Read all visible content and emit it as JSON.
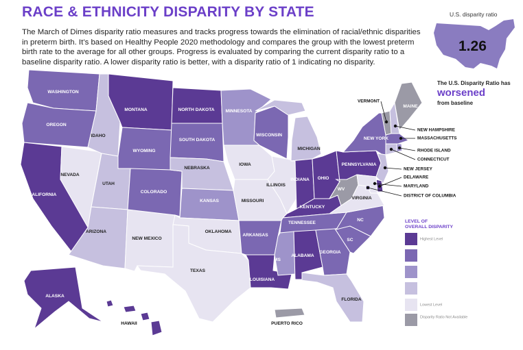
{
  "header": {
    "title": "RACE & ETHNICITY DISPARITY BY STATE",
    "description": "The March of Dimes disparity ratio measures and tracks progress towards the elimination of racial/ethnic disparities in preterm birth. It’s based on Healthy People 2020 methodology and compares the group with the lowest preterm birth rate to the average for all other groups. Progress is evaluated by comparing the current disparity ratio to a baseline disparity ratio. A lower disparity ratio is better, with a disparity ratio of 1 indicating no disparity."
  },
  "us_summary": {
    "caption": "U.S. disparity ratio",
    "value": 1.26,
    "trend_prefix": "The U.S. Disparity Ratio has",
    "trend": "worsened",
    "trend_suffix": "from baseline"
  },
  "legend": {
    "title": [
      "LEVEL OF",
      "OVERALL DISPARITY"
    ],
    "items": [
      {
        "color": "#5b3a94",
        "label": "Highest Level"
      },
      {
        "color": "#7b68b2"
      },
      {
        "color": "#9e93ca"
      },
      {
        "color": "#c6c0df"
      },
      {
        "color": "#e7e4f1",
        "label": "Lowest Level"
      },
      {
        "color": "#9b9aa6",
        "label": "Disparity Ratio Not Available"
      }
    ]
  },
  "states": [
    {
      "label": "WASHINGTON",
      "color": "#7b68b2"
    },
    {
      "label": "OREGON",
      "color": "#7b68b2"
    },
    {
      "label": "CALIFORNIA",
      "color": "#5b3a94"
    },
    {
      "label": "NEVADA",
      "color": "#e7e4f1"
    },
    {
      "label": "IDAHO",
      "color": "#c6c0df"
    },
    {
      "label": "MONTANA",
      "color": "#5b3a94"
    },
    {
      "label": "WYOMING",
      "color": "#7b68b2"
    },
    {
      "label": "UTAH",
      "color": "#c6c0df"
    },
    {
      "label": "ARIZONA",
      "color": "#c6c0df"
    },
    {
      "label": "NEW MEXICO",
      "color": "#e7e4f1"
    },
    {
      "label": "COLORADO",
      "color": "#7b68b2"
    },
    {
      "label": "NORTH DAKOTA",
      "color": "#5b3a94"
    },
    {
      "label": "SOUTH DAKOTA",
      "color": "#7b68b2"
    },
    {
      "label": "NEBRASKA",
      "color": "#c6c0df"
    },
    {
      "label": "KANSAS",
      "color": "#9e93ca"
    },
    {
      "label": "OKLAHOMA",
      "color": "#e7e4f1"
    },
    {
      "label": "TEXAS",
      "color": "#e7e4f1"
    },
    {
      "label": "MINNESOTA",
      "color": "#9e93ca"
    },
    {
      "label": "IOWA",
      "color": "#e7e4f1"
    },
    {
      "label": "MISSOURI",
      "color": "#e7e4f1"
    },
    {
      "label": "ARKANSAS",
      "color": "#7b68b2"
    },
    {
      "label": "LOUISIANA",
      "color": "#5b3a94"
    },
    {
      "label": "WISCONSIN",
      "color": "#7b68b2"
    },
    {
      "label": "ILLINOIS",
      "color": "#e7e4f1"
    },
    {
      "label": "MICHIGAN",
      "color": "#c6c0df"
    },
    {
      "label": "INDIANA",
      "color": "#5b3a94"
    },
    {
      "label": "OHIO",
      "color": "#5b3a94"
    },
    {
      "label": "KENTUCKY",
      "color": "#5b3a94"
    },
    {
      "label": "TENNESSEE",
      "color": "#7b68b2"
    },
    {
      "label": "MS",
      "color": "#9e93ca"
    },
    {
      "label": "ALABAMA",
      "color": "#5b3a94"
    },
    {
      "label": "GEORGIA",
      "color": "#7b68b2"
    },
    {
      "label": "FLORIDA",
      "color": "#c6c0df"
    },
    {
      "label": "SC",
      "color": "#7b68b2"
    },
    {
      "label": "NC",
      "color": "#7b68b2"
    },
    {
      "label": "VIRGINIA",
      "color": "#e7e4f1"
    },
    {
      "label": "WV",
      "color": "#9b9aa6"
    },
    {
      "label": "PENNSYLVANIA",
      "color": "#5b3a94"
    },
    {
      "label": "NEW YORK",
      "color": "#7b68b2"
    },
    {
      "label": "VERMONT",
      "color": "#9b9aa6"
    },
    {
      "label": "NEW HAMPSHIRE",
      "color": "#c6c0df"
    },
    {
      "label": "MAINE",
      "color": "#9b9aa6"
    },
    {
      "label": "MASSACHUSETTS",
      "color": "#7b68b2"
    },
    {
      "label": "CONNECTICUT",
      "color": "#c6c0df"
    },
    {
      "label": "RHODE ISLAND",
      "color": "#9e93ca"
    },
    {
      "label": "NEW JERSEY",
      "color": "#c6c0df"
    },
    {
      "label": "DELAWARE",
      "color": "#5b3a94"
    },
    {
      "label": "MARYLAND",
      "color": "#e7e4f1"
    },
    {
      "label": "DISTRICT OF COLUMBIA",
      "color": "#7b68b2"
    },
    {
      "label": "ALASKA",
      "color": "#5b3a94"
    },
    {
      "label": "HAWAII",
      "color": "#5b3a94"
    },
    {
      "label": "PUERTO RICO",
      "color": "#9b9aa6"
    }
  ]
}
